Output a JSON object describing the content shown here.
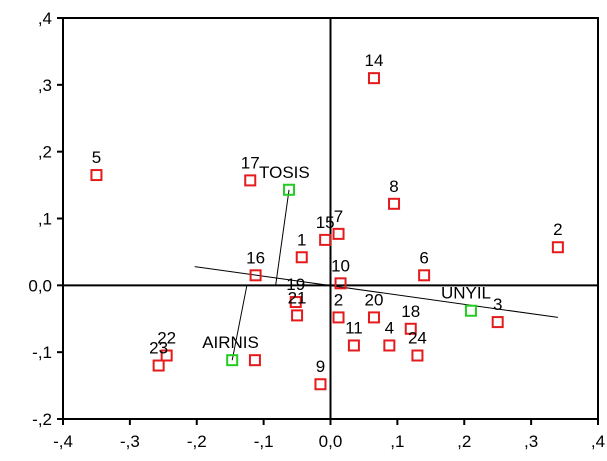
{
  "chart_data": {
    "type": "scatter",
    "title": "",
    "xlabel": "",
    "ylabel": "",
    "xlim": [
      -0.4,
      0.4
    ],
    "ylim": [
      -0.2,
      0.4
    ],
    "x_ticks": [
      -0.4,
      -0.3,
      -0.2,
      -0.1,
      0.0,
      0.1,
      0.2,
      0.3,
      0.4
    ],
    "y_ticks": [
      -0.2,
      -0.1,
      0.0,
      0.1,
      0.2,
      0.3,
      0.4
    ],
    "x_tick_labels": [
      "-,4",
      "-,3",
      "-,2",
      "-,1",
      "0,0",
      ",1",
      ",2",
      ",3",
      ",4"
    ],
    "y_tick_labels": [
      ",4",
      ",3",
      ",2",
      ",1",
      "0,0",
      "-,1",
      "-,2"
    ],
    "grid": false,
    "reference_lines": [
      "x = 0",
      "y = 0"
    ],
    "colors": {
      "observations": "#e41a1c",
      "variables": "#22cc22",
      "axes": "#000000"
    },
    "series": [
      {
        "marker": "open-square",
        "color": "#e41a1c",
        "points": [
          {
            "label": "14",
            "x": 0.065,
            "y": 0.31
          },
          {
            "label": "5",
            "x": -0.35,
            "y": 0.165
          },
          {
            "label": "17",
            "x": -0.12,
            "y": 0.157
          },
          {
            "label": "8",
            "x": 0.095,
            "y": 0.122
          },
          {
            "label": "2",
            "x": 0.34,
            "y": 0.057
          },
          {
            "label": "15",
            "x": -0.008,
            "y": 0.068
          },
          {
            "label": "7",
            "x": 0.012,
            "y": 0.077
          },
          {
            "label": "1",
            "x": -0.043,
            "y": 0.042
          },
          {
            "label": "16",
            "x": -0.112,
            "y": 0.015
          },
          {
            "label": "6",
            "x": 0.14,
            "y": 0.015
          },
          {
            "label": "10",
            "x": 0.015,
            "y": 0.003
          },
          {
            "label": "19",
            "x": -0.052,
            "y": -0.025
          },
          {
            "label": "21",
            "x": -0.05,
            "y": -0.045
          },
          {
            "label": "2",
            "x": 0.012,
            "y": -0.048
          },
          {
            "label": "20",
            "x": 0.065,
            "y": -0.048
          },
          {
            "label": "3",
            "x": 0.25,
            "y": -0.055
          },
          {
            "label": "18",
            "x": 0.12,
            "y": -0.065
          },
          {
            "label": "11",
            "x": 0.035,
            "y": -0.09
          },
          {
            "label": "4",
            "x": 0.088,
            "y": -0.09
          },
          {
            "label": "24",
            "x": 0.13,
            "y": -0.105
          },
          {
            "label": "22",
            "x": -0.245,
            "y": -0.105
          },
          {
            "label": "23",
            "x": -0.257,
            "y": -0.12
          },
          {
            "label": "9",
            "x": -0.015,
            "y": -0.148
          },
          {
            "label": "",
            "x": -0.113,
            "y": -0.112
          }
        ]
      },
      {
        "marker": "open-square",
        "color": "#22cc22",
        "points": [
          {
            "label": "TOSIS",
            "x": -0.062,
            "y": 0.143
          },
          {
            "label": "AIRNIS",
            "x": -0.147,
            "y": -0.112
          },
          {
            "label": "UNYIL",
            "x": 0.21,
            "y": -0.038
          }
        ]
      }
    ],
    "vector_lines": [
      {
        "from": [
          -0.203,
          0.028
        ],
        "to": [
          0.34,
          -0.048
        ]
      },
      {
        "from": [
          -0.082,
          0.0
        ],
        "to": [
          -0.062,
          0.143
        ]
      },
      {
        "from": [
          -0.147,
          -0.112
        ],
        "to": [
          -0.125,
          0.0
        ]
      }
    ]
  }
}
